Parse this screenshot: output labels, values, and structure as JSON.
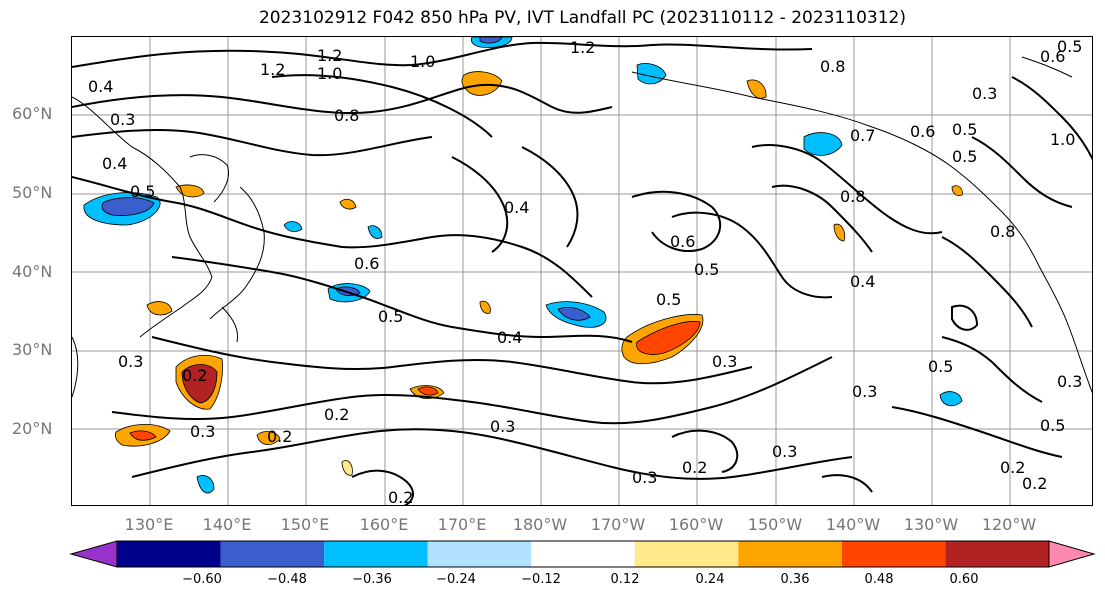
{
  "title": "2023102912 F042 850 hPa PV, IVT Landfall PC (2023110112 - 2023110312)",
  "lat_labels": [
    "60°N",
    "50°N",
    "40°N",
    "30°N",
    "20°N"
  ],
  "lon_labels": [
    "130°E",
    "140°E",
    "150°E",
    "160°E",
    "170°E",
    "180°W",
    "170°W",
    "160°W",
    "150°W",
    "140°W",
    "130°W",
    "120°W"
  ],
  "colorbar": {
    "ticks": [
      "−0.60",
      "−0.48",
      "−0.36",
      "−0.24",
      "−0.12",
      "0.12",
      "0.24",
      "0.36",
      "0.48",
      "0.60"
    ],
    "colors": [
      "#9932cc",
      "#00008b",
      "#3a5fcd",
      "#00bfff",
      "#b0e2ff",
      "#ffffff",
      "#ffe98a",
      "#ffa500",
      "#ff4500",
      "#b22222",
      "#ff88b0"
    ]
  },
  "contour_labels": [
    "1.2",
    "1.0",
    "1.2",
    "1.2",
    "1.0",
    "0.8",
    "0.6",
    "0.5",
    "0.4",
    "0.3",
    "0.8",
    "0.3",
    "0.5",
    "0.7",
    "0.6",
    "0.5",
    "1.0",
    "0.8",
    "0.5",
    "0.4",
    "0.4",
    "0.8",
    "0.6",
    "0.5",
    "0.5",
    "0.6",
    "0.4",
    "0.5",
    "0.4",
    "0.3",
    "0.3",
    "0.2",
    "0.3",
    "0.2",
    "0.2",
    "0.3",
    "0.3",
    "0.2",
    "0.3",
    "0.5",
    "0.3",
    "0.5",
    "0.2",
    "0.2",
    "0.3",
    "0.2"
  ]
}
